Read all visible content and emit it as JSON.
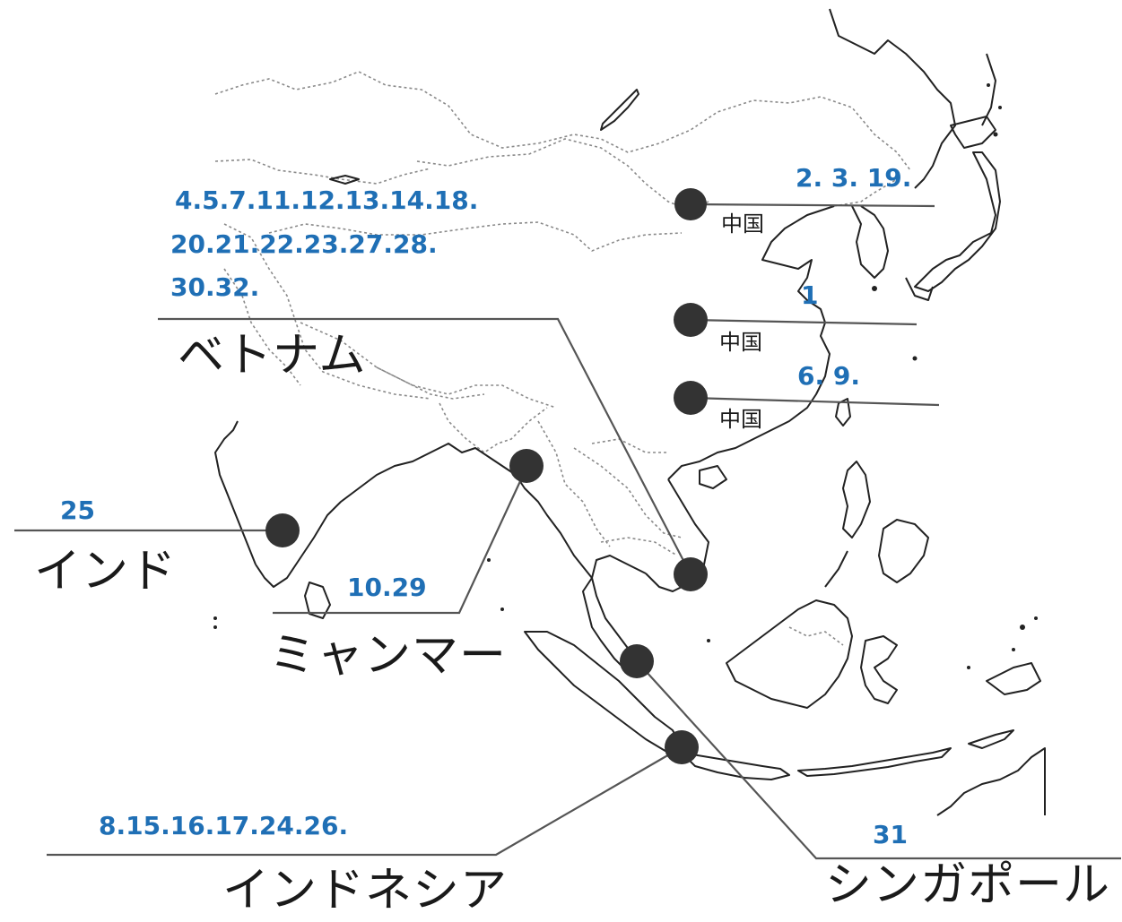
{
  "locations": [
    {
      "id": "china-north",
      "country": "中国",
      "numbers": "2. 3. 19."
    },
    {
      "id": "china-middle",
      "country": "中国",
      "numbers": "1"
    },
    {
      "id": "china-south",
      "country": "中国",
      "numbers": "6. 9."
    },
    {
      "id": "vietnam",
      "country": "ベトナム",
      "numbers": [
        "4.5.7.11.12.13.14.18.",
        "20.21.22.23.27.28.",
        "30.32."
      ]
    },
    {
      "id": "india",
      "country": "インド",
      "numbers": "25"
    },
    {
      "id": "myanmar",
      "country": "ミャンマー",
      "numbers": "10.29"
    },
    {
      "id": "indonesia",
      "country": "インドネシア",
      "numbers": "8.15.16.17.24.26."
    },
    {
      "id": "singapore",
      "country": "シンガポール",
      "numbers": "31"
    }
  ],
  "colors": {
    "number_text": "#1f6fb5",
    "marker": "#333333",
    "leader_line": "#555555",
    "coastline": "#222222",
    "border": "#8a8a8a"
  }
}
